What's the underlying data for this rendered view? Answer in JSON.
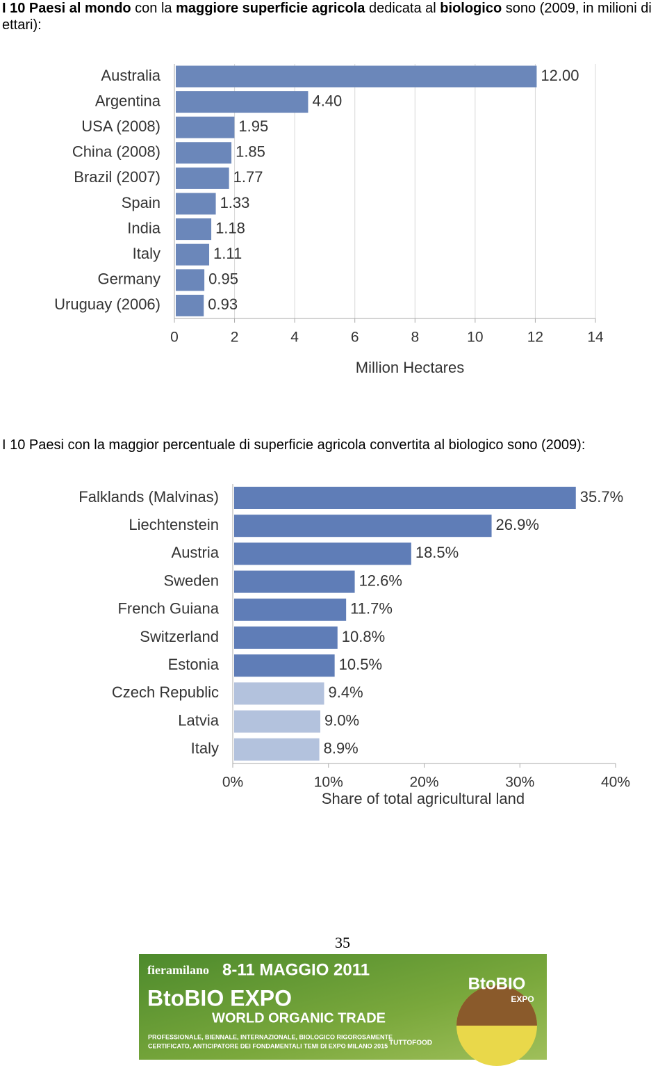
{
  "intro": [
    {
      "text": "I 10 Paesi al mondo",
      "bold": true
    },
    {
      "text": " con la ",
      "bold": false
    },
    {
      "text": "maggiore superficie agricola",
      "bold": true
    },
    {
      "text": " dedicata al ",
      "bold": false
    },
    {
      "text": "biologico",
      "bold": true
    },
    {
      "text": " sono (2009, in milioni di ettari):",
      "bold": false
    }
  ],
  "second_intro": "I 10 Paesi con la maggior percentuale di superficie agricola convertita al biologico sono (2009):",
  "chart_data": [
    {
      "type": "hbar",
      "categories": [
        "Australia",
        "Argentina",
        "USA (2008)",
        "China (2008)",
        "Brazil (2007)",
        "Spain",
        "India",
        "Italy",
        "Germany",
        "Uruguay (2006)"
      ],
      "values": [
        12.0,
        4.4,
        1.95,
        1.85,
        1.77,
        1.33,
        1.18,
        1.11,
        0.95,
        0.93
      ],
      "value_labels": [
        "12.00",
        "4.40",
        "1.95",
        "1.85",
        "1.77",
        "1.33",
        "1.18",
        "1.11",
        "0.95",
        "0.93"
      ],
      "colors": [
        "#6b87ba",
        "#6b87ba",
        "#6b87ba",
        "#6b87ba",
        "#6b87ba",
        "#6b87ba",
        "#6b87ba",
        "#6b87ba",
        "#6b87ba",
        "#6b87ba"
      ],
      "xlabel": "Million Hectares",
      "xlim": [
        0,
        14
      ],
      "xticks": [
        0,
        2,
        4,
        6,
        8,
        10,
        12,
        14
      ],
      "grid": true
    },
    {
      "type": "hbar",
      "categories": [
        "Falklands (Malvinas)",
        "Liechtenstein",
        "Austria",
        "Sweden",
        "French Guiana",
        "Switzerland",
        "Estonia",
        "Czech Republic",
        "Latvia",
        "Italy"
      ],
      "values": [
        35.7,
        26.9,
        18.5,
        12.6,
        11.7,
        10.8,
        10.5,
        9.4,
        9.0,
        8.9
      ],
      "value_labels": [
        "35.7%",
        "26.9%",
        "18.5%",
        "12.6%",
        "11.7%",
        "10.8%",
        "10.5%",
        "9.4%",
        "9.0%",
        "8.9%"
      ],
      "colors": [
        "#5f7db7",
        "#5f7db7",
        "#5f7db7",
        "#5f7db7",
        "#5f7db7",
        "#5f7db7",
        "#5f7db7",
        "#b3c2dd",
        "#b3c2dd",
        "#b3c2dd"
      ],
      "xlabel": "Share of total agricultural land",
      "xlim": [
        0,
        40
      ],
      "xticks": [
        {
          "value": 0,
          "label": "0%"
        },
        {
          "value": 10,
          "label": "10%"
        },
        {
          "value": 20,
          "label": "20%"
        },
        {
          "value": 30,
          "label": "30%"
        },
        {
          "value": 40,
          "label": "40%"
        }
      ],
      "grid": false
    }
  ],
  "page_number": "35",
  "banner": {
    "venue": "fieramilano",
    "dates": "8-11 MAGGIO 2011",
    "name": "BtoBIO EXPO",
    "tagline": "WORLD ORGANIC TRADE",
    "description_1": "PROFESSIONALE, BIENNALE, INTERNAZIONALE, BIOLOGICO RIGOROSAMENTE",
    "description_2": "CERTIFICATO, ANTICIPATORE DEI FONDAMENTALI TEMI DI EXPO MILANO 2015",
    "logo": "BtoBIO",
    "logo_sub": "EXPO",
    "partner": "TUTTOFOOD"
  }
}
